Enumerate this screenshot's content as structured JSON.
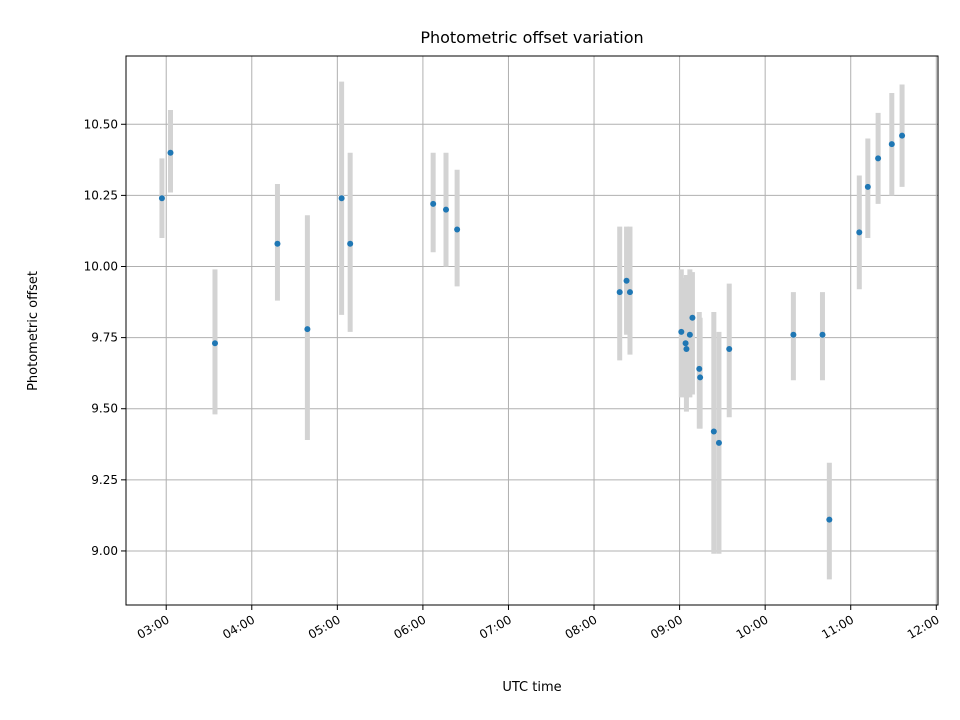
{
  "chart_data": {
    "type": "scatter",
    "title": "Photometric offset variation",
    "xlabel": "UTC time",
    "ylabel": "Photometric offset",
    "x_unit": "UTC hours",
    "xlim": [
      2.53,
      12.02
    ],
    "ylim": [
      8.81,
      10.74
    ],
    "grid": true,
    "xticks": [
      {
        "value": 3,
        "label": "03:00"
      },
      {
        "value": 4,
        "label": "04:00"
      },
      {
        "value": 5,
        "label": "05:00"
      },
      {
        "value": 6,
        "label": "06:00"
      },
      {
        "value": 7,
        "label": "07:00"
      },
      {
        "value": 8,
        "label": "08:00"
      },
      {
        "value": 9,
        "label": "09:00"
      },
      {
        "value": 10,
        "label": "10:00"
      },
      {
        "value": 11,
        "label": "11:00"
      },
      {
        "value": 12,
        "label": "12:00"
      }
    ],
    "yticks": [
      {
        "value": 9.0,
        "label": "9.00"
      },
      {
        "value": 9.25,
        "label": "9.25"
      },
      {
        "value": 9.5,
        "label": "9.50"
      },
      {
        "value": 9.75,
        "label": "9.75"
      },
      {
        "value": 10.0,
        "label": "10.00"
      },
      {
        "value": 10.25,
        "label": "10.25"
      },
      {
        "value": 10.5,
        "label": "10.50"
      }
    ],
    "series": [
      {
        "marker_color": "#1f77b4",
        "errorbar_color": "#d3d3d3",
        "points": [
          {
            "x": 2.95,
            "y": 10.24,
            "lo": 10.1,
            "hi": 10.38
          },
          {
            "x": 3.05,
            "y": 10.4,
            "lo": 10.26,
            "hi": 10.55
          },
          {
            "x": 3.57,
            "y": 9.73,
            "lo": 9.48,
            "hi": 9.99
          },
          {
            "x": 4.3,
            "y": 10.08,
            "lo": 9.88,
            "hi": 10.29
          },
          {
            "x": 4.65,
            "y": 9.78,
            "lo": 9.39,
            "hi": 10.18
          },
          {
            "x": 5.05,
            "y": 10.24,
            "lo": 9.83,
            "hi": 10.65
          },
          {
            "x": 5.15,
            "y": 10.08,
            "lo": 9.77,
            "hi": 10.4
          },
          {
            "x": 6.12,
            "y": 10.22,
            "lo": 10.05,
            "hi": 10.4
          },
          {
            "x": 6.27,
            "y": 10.2,
            "lo": 10.0,
            "hi": 10.4
          },
          {
            "x": 6.4,
            "y": 10.13,
            "lo": 9.93,
            "hi": 10.34
          },
          {
            "x": 8.3,
            "y": 9.91,
            "lo": 9.67,
            "hi": 10.14
          },
          {
            "x": 8.38,
            "y": 9.95,
            "lo": 9.76,
            "hi": 10.14
          },
          {
            "x": 8.42,
            "y": 9.91,
            "lo": 9.69,
            "hi": 10.14
          },
          {
            "x": 9.02,
            "y": 9.77,
            "lo": 9.54,
            "hi": 9.99
          },
          {
            "x": 9.07,
            "y": 9.73,
            "lo": 9.54,
            "hi": 9.96
          },
          {
            "x": 9.08,
            "y": 9.71,
            "lo": 9.49,
            "hi": 9.97
          },
          {
            "x": 9.12,
            "y": 9.76,
            "lo": 9.54,
            "hi": 9.99
          },
          {
            "x": 9.15,
            "y": 9.82,
            "lo": 9.55,
            "hi": 9.98
          },
          {
            "x": 9.23,
            "y": 9.64,
            "lo": 9.43,
            "hi": 9.84
          },
          {
            "x": 9.24,
            "y": 9.61,
            "lo": 9.43,
            "hi": 9.82
          },
          {
            "x": 9.4,
            "y": 9.42,
            "lo": 8.99,
            "hi": 9.84
          },
          {
            "x": 9.46,
            "y": 9.38,
            "lo": 8.99,
            "hi": 9.77
          },
          {
            "x": 9.58,
            "y": 9.71,
            "lo": 9.47,
            "hi": 9.94
          },
          {
            "x": 10.33,
            "y": 9.76,
            "lo": 9.6,
            "hi": 9.91
          },
          {
            "x": 10.67,
            "y": 9.76,
            "lo": 9.6,
            "hi": 9.91
          },
          {
            "x": 10.75,
            "y": 9.11,
            "lo": 8.9,
            "hi": 9.31
          },
          {
            "x": 11.1,
            "y": 10.12,
            "lo": 9.92,
            "hi": 10.32
          },
          {
            "x": 11.2,
            "y": 10.28,
            "lo": 10.1,
            "hi": 10.45
          },
          {
            "x": 11.32,
            "y": 10.38,
            "lo": 10.22,
            "hi": 10.54
          },
          {
            "x": 11.48,
            "y": 10.43,
            "lo": 10.25,
            "hi": 10.61
          },
          {
            "x": 11.6,
            "y": 10.46,
            "lo": 10.28,
            "hi": 10.64
          }
        ]
      }
    ]
  }
}
